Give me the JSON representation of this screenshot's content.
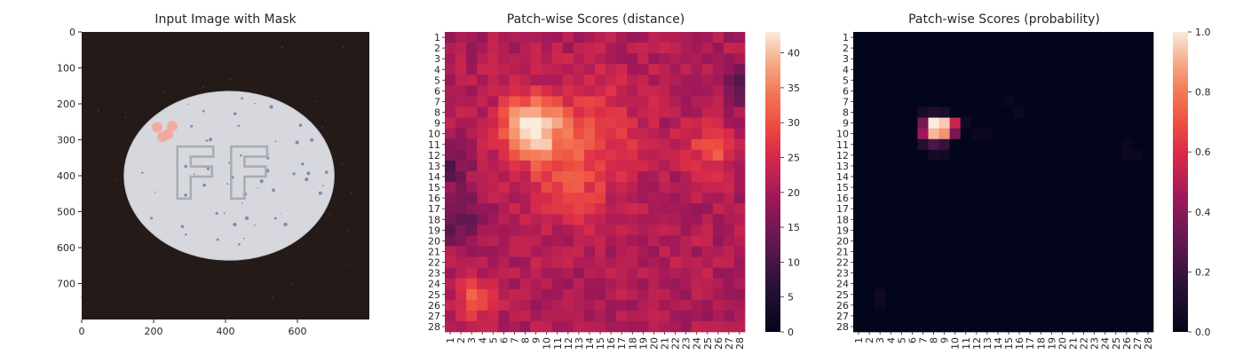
{
  "chart_data": [
    {
      "type": "image",
      "title": "Input Image with Mask",
      "xlabel": "",
      "ylabel": "",
      "xlim": [
        0,
        800
      ],
      "ylim": [
        800,
        0
      ],
      "xticks": [
        0,
        200,
        400,
        600
      ],
      "yticks": [
        0,
        100,
        200,
        300,
        400,
        500,
        600,
        700
      ],
      "image_content": {
        "background": "#241a17",
        "pill": {
          "shape": "ellipse",
          "color": "#d6d8de",
          "center": [
            410,
            400
          ],
          "radii": [
            292,
            235
          ],
          "embossed_text": "FF"
        },
        "mask_dots": [
          [
            210,
            265
          ],
          [
            252,
            262
          ],
          [
            225,
            292
          ],
          [
            240,
            285
          ]
        ],
        "mask_color": "#f4a79a"
      }
    },
    {
      "type": "heatmap",
      "title": "Patch-wise Scores (distance)",
      "xlabel": "",
      "ylabel": "",
      "rows": 28,
      "cols": 28,
      "row_labels": [
        "1",
        "2",
        "3",
        "4",
        "5",
        "6",
        "7",
        "8",
        "9",
        "10",
        "11",
        "12",
        "13",
        "14",
        "15",
        "16",
        "17",
        "18",
        "19",
        "20",
        "21",
        "22",
        "23",
        "24",
        "25",
        "26",
        "27",
        "28"
      ],
      "col_labels": [
        "1",
        "2",
        "3",
        "4",
        "5",
        "6",
        "7",
        "8",
        "9",
        "10",
        "11",
        "12",
        "13",
        "14",
        "15",
        "16",
        "17",
        "18",
        "19",
        "20",
        "21",
        "22",
        "23",
        "24",
        "25",
        "26",
        "27",
        "28"
      ],
      "colorbar": {
        "min": 0,
        "max": 43,
        "ticks": [
          0,
          5,
          10,
          15,
          20,
          25,
          30,
          35,
          40
        ]
      },
      "colormap": "rocket",
      "base_value": 21,
      "hotspots": [
        {
          "row": 9.5,
          "col": 8.5,
          "peak": 43,
          "spread": 2.0
        },
        {
          "row": 10,
          "col": 14,
          "peak": 28,
          "spread": 3.5
        },
        {
          "row": 11.5,
          "col": 25.5,
          "peak": 30,
          "spread": 1.6
        },
        {
          "row": 25.5,
          "col": 3.5,
          "peak": 32,
          "spread": 1.2
        },
        {
          "row": 15,
          "col": 12,
          "peak": 27,
          "spread": 2.5
        }
      ],
      "coldspots": [
        {
          "row": 5.5,
          "col": 28,
          "value": 12,
          "spread": 1.2
        },
        {
          "row": 18,
          "col": 1.5,
          "value": 12,
          "spread": 1.6
        },
        {
          "row": 13,
          "col": 1,
          "value": 13,
          "spread": 1.2
        }
      ]
    },
    {
      "type": "heatmap",
      "title": "Patch-wise Scores (probability)",
      "xlabel": "",
      "ylabel": "",
      "rows": 28,
      "cols": 28,
      "row_labels": [
        "1",
        "2",
        "3",
        "4",
        "5",
        "6",
        "7",
        "8",
        "9",
        "10",
        "11",
        "12",
        "13",
        "14",
        "15",
        "16",
        "17",
        "18",
        "19",
        "20",
        "21",
        "22",
        "23",
        "24",
        "25",
        "26",
        "27",
        "28"
      ],
      "col_labels": [
        "1",
        "2",
        "3",
        "4",
        "5",
        "6",
        "7",
        "8",
        "9",
        "10",
        "11",
        "12",
        "13",
        "14",
        "15",
        "16",
        "17",
        "18",
        "19",
        "20",
        "21",
        "22",
        "23",
        "24",
        "25",
        "26",
        "27",
        "28"
      ],
      "colorbar": {
        "min": 0.0,
        "max": 1.0,
        "ticks": [
          0.0,
          0.2,
          0.4,
          0.6,
          0.8,
          1.0
        ]
      },
      "colormap": "rocket",
      "cells": [
        {
          "row": 8,
          "col": 7,
          "value": 0.08
        },
        {
          "row": 8,
          "col": 8,
          "value": 0.12
        },
        {
          "row": 8,
          "col": 9,
          "value": 0.1
        },
        {
          "row": 9,
          "col": 7,
          "value": 0.35
        },
        {
          "row": 9,
          "col": 8,
          "value": 1.0
        },
        {
          "row": 9,
          "col": 9,
          "value": 0.95
        },
        {
          "row": 9,
          "col": 10,
          "value": 0.55
        },
        {
          "row": 10,
          "col": 7,
          "value": 0.45
        },
        {
          "row": 10,
          "col": 8,
          "value": 0.92
        },
        {
          "row": 10,
          "col": 9,
          "value": 0.85
        },
        {
          "row": 10,
          "col": 10,
          "value": 0.35
        },
        {
          "row": 11,
          "col": 7,
          "value": 0.12
        },
        {
          "row": 11,
          "col": 8,
          "value": 0.25
        },
        {
          "row": 11,
          "col": 9,
          "value": 0.18
        },
        {
          "row": 12,
          "col": 8,
          "value": 0.07
        },
        {
          "row": 12,
          "col": 9,
          "value": 0.06
        },
        {
          "row": 9,
          "col": 11,
          "value": 0.05
        },
        {
          "row": 10,
          "col": 12,
          "value": 0.04
        },
        {
          "row": 10,
          "col": 13,
          "value": 0.04
        },
        {
          "row": 8,
          "col": 16,
          "value": 0.04
        },
        {
          "row": 7,
          "col": 15,
          "value": 0.03
        },
        {
          "row": 12,
          "col": 26,
          "value": 0.04
        },
        {
          "row": 11,
          "col": 26,
          "value": 0.03
        },
        {
          "row": 12,
          "col": 27,
          "value": 0.03
        },
        {
          "row": 25,
          "col": 3,
          "value": 0.05
        },
        {
          "row": 26,
          "col": 3,
          "value": 0.04
        }
      ]
    }
  ]
}
